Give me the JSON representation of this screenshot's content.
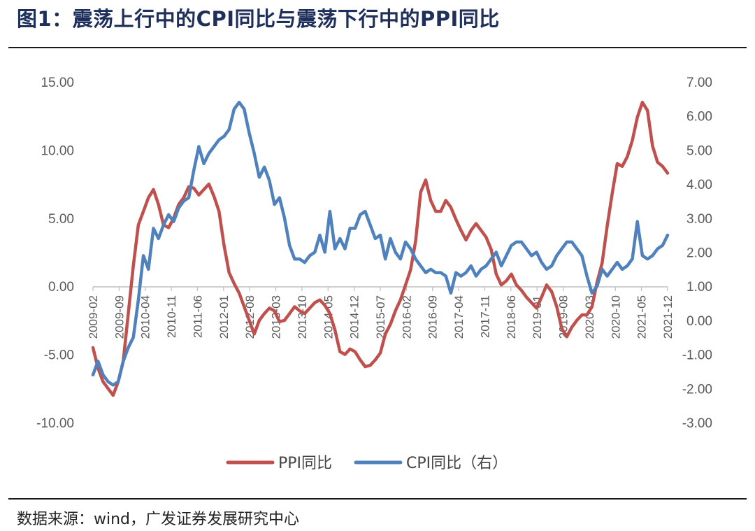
{
  "header": {
    "title": "图1：震荡上行中的CPI同比与震荡下行中的PPI同比"
  },
  "footer": {
    "source": "数据来源：wind，广发证券发展研究中心"
  },
  "chart_data": {
    "type": "line",
    "title": "图1：震荡上行中的CPI同比与震荡下行中的PPI同比",
    "x_ticks": [
      "2009-02",
      "2009-09",
      "2010-04",
      "2010-11",
      "2011-06",
      "2012-01",
      "2012-08",
      "2013-03",
      "2013-10",
      "2014-05",
      "2014-12",
      "2015-07",
      "2016-02",
      "2016-09",
      "2017-04",
      "2017-11",
      "2018-06",
      "2019-01",
      "2019-08",
      "2020-03",
      "2020-10",
      "2021-05",
      "2021-12"
    ],
    "y_left": {
      "ticks": [
        "15.00",
        "10.00",
        "5.00",
        "0.00",
        "-5.00",
        "-10.00"
      ],
      "range": [
        -10,
        15
      ]
    },
    "y_right": {
      "ticks": [
        "7.00",
        "6.00",
        "5.00",
        "4.00",
        "3.00",
        "2.00",
        "1.00",
        "0.00",
        "-1.00",
        "-2.00",
        "-3.00"
      ],
      "range": [
        -3,
        7
      ]
    },
    "series": [
      {
        "name": "PPI同比",
        "axis": "left",
        "color": "#c0504d",
        "points": [
          [
            0,
            -4.5
          ],
          [
            1,
            -6.0
          ],
          [
            2,
            -7.0
          ],
          [
            3,
            -7.5
          ],
          [
            4,
            -8.0
          ],
          [
            5,
            -7.0
          ],
          [
            6,
            -5.5
          ],
          [
            7,
            -2.0
          ],
          [
            8,
            1.5
          ],
          [
            9,
            4.5
          ],
          [
            10,
            5.5
          ],
          [
            11,
            6.5
          ],
          [
            12,
            7.1
          ],
          [
            13,
            6.0
          ],
          [
            14,
            4.5
          ],
          [
            15,
            4.3
          ],
          [
            16,
            5.0
          ],
          [
            17,
            6.0
          ],
          [
            18,
            6.5
          ],
          [
            19,
            7.3
          ],
          [
            20,
            7.2
          ],
          [
            21,
            6.7
          ],
          [
            22,
            7.1
          ],
          [
            23,
            7.5
          ],
          [
            24,
            6.6
          ],
          [
            25,
            5.5
          ],
          [
            26,
            3.0
          ],
          [
            27,
            1.0
          ],
          [
            28,
            0.2
          ],
          [
            29,
            -0.5
          ],
          [
            30,
            -1.5
          ],
          [
            31,
            -2.5
          ],
          [
            32,
            -3.5
          ],
          [
            33,
            -2.5
          ],
          [
            34,
            -2.0
          ],
          [
            35,
            -1.6
          ],
          [
            36,
            -1.8
          ],
          [
            37,
            -2.6
          ],
          [
            38,
            -2.5
          ],
          [
            39,
            -2.0
          ],
          [
            40,
            -1.5
          ],
          [
            41,
            -1.8
          ],
          [
            42,
            -2.0
          ],
          [
            43,
            -1.6
          ],
          [
            44,
            -1.2
          ],
          [
            45,
            -1.0
          ],
          [
            46,
            -1.4
          ],
          [
            47,
            -2.0
          ],
          [
            48,
            -3.2
          ],
          [
            49,
            -4.8
          ],
          [
            50,
            -5.0
          ],
          [
            51,
            -4.6
          ],
          [
            52,
            -4.8
          ],
          [
            53,
            -5.4
          ],
          [
            54,
            -5.9
          ],
          [
            55,
            -5.8
          ],
          [
            56,
            -5.4
          ],
          [
            57,
            -4.9
          ],
          [
            58,
            -3.5
          ],
          [
            59,
            -2.8
          ],
          [
            60,
            -1.8
          ],
          [
            61,
            -1.0
          ],
          [
            62,
            0.1
          ],
          [
            63,
            1.2
          ],
          [
            64,
            3.3
          ],
          [
            65,
            6.9
          ],
          [
            66,
            7.8
          ],
          [
            67,
            6.3
          ],
          [
            68,
            5.5
          ],
          [
            69,
            5.5
          ],
          [
            70,
            6.3
          ],
          [
            71,
            5.8
          ],
          [
            72,
            4.9
          ],
          [
            73,
            4.1
          ],
          [
            74,
            3.4
          ],
          [
            75,
            4.1
          ],
          [
            76,
            4.6
          ],
          [
            77,
            4.1
          ],
          [
            78,
            3.6
          ],
          [
            79,
            2.7
          ],
          [
            80,
            0.9
          ],
          [
            81,
            0.1
          ],
          [
            82,
            0.4
          ],
          [
            83,
            0.9
          ],
          [
            84,
            0.1
          ],
          [
            85,
            -0.3
          ],
          [
            86,
            -0.8
          ],
          [
            87,
            -1.2
          ],
          [
            88,
            -1.6
          ],
          [
            89,
            -0.8
          ],
          [
            90,
            0.1
          ],
          [
            91,
            -0.4
          ],
          [
            92,
            -1.5
          ],
          [
            93,
            -3.1
          ],
          [
            94,
            -3.7
          ],
          [
            95,
            -3.0
          ],
          [
            96,
            -2.5
          ],
          [
            97,
            -2.1
          ],
          [
            98,
            -2.1
          ],
          [
            99,
            -1.5
          ],
          [
            100,
            0.3
          ],
          [
            101,
            1.7
          ],
          [
            102,
            4.4
          ],
          [
            103,
            6.8
          ],
          [
            104,
            9.0
          ],
          [
            105,
            8.8
          ],
          [
            106,
            9.5
          ],
          [
            107,
            10.7
          ],
          [
            108,
            12.4
          ],
          [
            109,
            13.5
          ],
          [
            110,
            12.9
          ],
          [
            111,
            10.3
          ],
          [
            112,
            9.1
          ],
          [
            113,
            8.8
          ],
          [
            114,
            8.3
          ]
        ]
      },
      {
        "name": "CPI同比（右）",
        "axis": "right",
        "color": "#4f81bd",
        "points": [
          [
            0,
            -1.6
          ],
          [
            1,
            -1.2
          ],
          [
            2,
            -1.6
          ],
          [
            3,
            -1.8
          ],
          [
            4,
            -1.9
          ],
          [
            5,
            -1.8
          ],
          [
            6,
            -1.2
          ],
          [
            7,
            -0.8
          ],
          [
            8,
            -0.5
          ],
          [
            9,
            0.6
          ],
          [
            10,
            1.9
          ],
          [
            11,
            1.5
          ],
          [
            12,
            2.7
          ],
          [
            13,
            2.4
          ],
          [
            14,
            2.8
          ],
          [
            15,
            3.1
          ],
          [
            16,
            2.9
          ],
          [
            17,
            3.3
          ],
          [
            18,
            3.5
          ],
          [
            19,
            3.6
          ],
          [
            20,
            4.4
          ],
          [
            21,
            5.1
          ],
          [
            22,
            4.6
          ],
          [
            23,
            4.9
          ],
          [
            24,
            5.1
          ],
          [
            25,
            5.3
          ],
          [
            26,
            5.4
          ],
          [
            27,
            5.6
          ],
          [
            28,
            6.2
          ],
          [
            29,
            6.4
          ],
          [
            30,
            6.2
          ],
          [
            31,
            5.5
          ],
          [
            32,
            4.9
          ],
          [
            33,
            4.2
          ],
          [
            34,
            4.5
          ],
          [
            35,
            4.1
          ],
          [
            36,
            3.4
          ],
          [
            37,
            3.6
          ],
          [
            38,
            3.0
          ],
          [
            39,
            2.2
          ],
          [
            40,
            1.8
          ],
          [
            41,
            1.8
          ],
          [
            42,
            1.7
          ],
          [
            43,
            1.9
          ],
          [
            44,
            2.0
          ],
          [
            45,
            2.5
          ],
          [
            46,
            2.0
          ],
          [
            47,
            3.2
          ],
          [
            48,
            2.1
          ],
          [
            49,
            2.4
          ],
          [
            50,
            2.1
          ],
          [
            51,
            2.7
          ],
          [
            52,
            2.7
          ],
          [
            53,
            3.1
          ],
          [
            54,
            3.2
          ],
          [
            55,
            2.8
          ],
          [
            56,
            2.4
          ],
          [
            57,
            2.5
          ],
          [
            58,
            1.8
          ],
          [
            59,
            2.4
          ],
          [
            60,
            2.0
          ],
          [
            61,
            1.8
          ],
          [
            62,
            2.3
          ],
          [
            63,
            2.1
          ],
          [
            64,
            1.8
          ],
          [
            65,
            1.6
          ],
          [
            66,
            1.4
          ],
          [
            67,
            1.5
          ],
          [
            68,
            1.4
          ],
          [
            69,
            1.4
          ],
          [
            70,
            1.3
          ],
          [
            71,
            0.8
          ],
          [
            72,
            1.4
          ],
          [
            73,
            1.3
          ],
          [
            74,
            1.4
          ],
          [
            75,
            1.6
          ],
          [
            76,
            1.3
          ],
          [
            77,
            1.5
          ],
          [
            78,
            1.6
          ],
          [
            79,
            1.8
          ],
          [
            80,
            2.0
          ],
          [
            81,
            1.6
          ],
          [
            82,
            1.9
          ],
          [
            83,
            2.2
          ],
          [
            84,
            2.3
          ],
          [
            85,
            2.3
          ],
          [
            86,
            2.1
          ],
          [
            87,
            1.9
          ],
          [
            88,
            2.0
          ],
          [
            89,
            1.7
          ],
          [
            90,
            1.5
          ],
          [
            91,
            1.6
          ],
          [
            92,
            1.9
          ],
          [
            93,
            2.1
          ],
          [
            94,
            2.3
          ],
          [
            95,
            2.3
          ],
          [
            96,
            2.1
          ],
          [
            97,
            1.9
          ],
          [
            98,
            1.3
          ],
          [
            99,
            0.8
          ],
          [
            100,
            1.0
          ],
          [
            101,
            1.5
          ],
          [
            102,
            1.3
          ],
          [
            103,
            1.5
          ],
          [
            104,
            1.7
          ],
          [
            105,
            1.5
          ],
          [
            106,
            1.6
          ],
          [
            107,
            1.8
          ],
          [
            108,
            2.9
          ],
          [
            109,
            1.9
          ],
          [
            110,
            1.8
          ],
          [
            111,
            1.9
          ],
          [
            112,
            2.1
          ],
          [
            113,
            2.2
          ],
          [
            114,
            2.5
          ]
        ]
      }
    ]
  }
}
